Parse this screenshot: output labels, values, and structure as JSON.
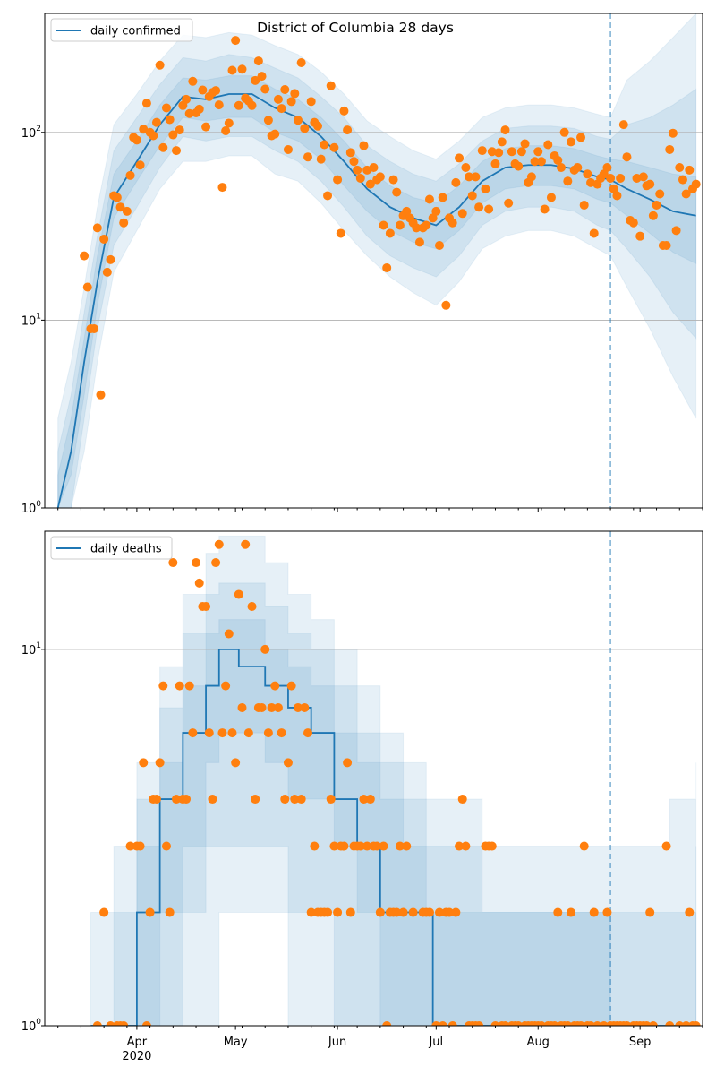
{
  "colors": {
    "model": "#1f77b4",
    "observed": "#ff7f0e",
    "grid": "#b0b0b0",
    "vline": "#1f77b4"
  },
  "chart_data": [
    {
      "type": "line+scatter",
      "title": "District of Columbia 28 days",
      "legend": {
        "label": "daily confirmed",
        "placement": "top-left"
      },
      "y_scale": "log",
      "ylim": [
        1,
        430
      ],
      "xlim": [
        "2020-03-04",
        "2020-09-20"
      ],
      "y_ticks": [
        {
          "base": "10",
          "exp": "0",
          "value": 1
        },
        {
          "base": "10",
          "exp": "1",
          "value": 10
        },
        {
          "base": "10",
          "exp": "2",
          "value": 100
        }
      ],
      "grid": "horizontal at major y ticks",
      "vertical_marker": "2020-08-23",
      "observed": [
        {
          "start_date": "2020-03-16",
          "values": [
            22,
            15,
            9,
            9,
            31,
            4,
            27,
            18,
            21,
            46,
            45,
            40,
            33,
            38,
            59,
            94
          ]
        },
        {
          "start_date": "2020-04-01",
          "values": [
            91,
            67,
            104,
            143,
            100,
            96,
            113,
            228,
            83,
            135,
            117,
            97,
            80,
            103,
            139,
            150,
            126,
            187,
            127,
            133,
            168,
            107,
            155,
            163,
            167,
            140,
            51,
            102,
            112,
            214
          ]
        },
        {
          "start_date": "2020-05-01",
          "values": [
            309,
            139,
            217,
            152,
            147,
            139,
            189,
            240,
            199,
            170,
            116,
            96,
            98,
            150,
            134,
            169,
            81,
            146,
            161,
            116,
            235,
            105,
            74,
            146,
            113,
            108,
            72,
            86,
            46,
            177,
            83
          ]
        },
        {
          "start_date": "2020-06-01",
          "values": [
            56,
            29,
            130,
            103,
            78,
            70,
            63,
            57,
            85,
            63,
            53,
            65,
            56,
            58,
            32,
            19,
            29,
            56,
            48,
            32,
            36,
            38,
            35,
            33,
            31,
            26,
            31,
            32,
            44,
            35
          ]
        },
        {
          "start_date": "2020-07-01",
          "values": [
            38,
            25,
            45,
            12,
            35,
            33,
            54,
            73,
            37,
            65,
            58,
            46,
            58,
            40,
            80,
            50,
            39,
            79,
            68,
            78,
            89,
            103,
            42,
            79,
            68,
            66,
            79,
            87,
            54,
            58,
            70
          ]
        },
        {
          "start_date": "2020-08-01",
          "values": [
            79,
            70,
            39,
            86,
            45,
            75,
            71,
            65,
            100,
            55,
            89,
            63,
            65,
            94,
            41,
            60,
            54,
            29,
            53,
            57,
            60,
            65,
            57,
            50,
            46,
            57,
            110,
            74,
            34,
            33,
            57
          ]
        },
        {
          "start_date": "2020-09-01",
          "values": [
            28,
            58,
            52,
            53,
            36,
            41,
            47,
            25,
            25,
            81,
            99,
            30,
            65,
            56,
            47,
            63,
            50,
            53
          ]
        }
      ],
      "model_columns": [
        "date",
        "outer_lo",
        "mid_lo",
        "inner_lo",
        "median",
        "inner_hi",
        "mid_hi",
        "outer_hi"
      ],
      "model": [
        [
          "2020-03-08",
          0.5,
          0.6,
          0.8,
          1,
          1.5,
          2,
          3
        ],
        [
          "2020-03-12",
          0.8,
          1,
          1.5,
          2,
          3,
          4,
          6
        ],
        [
          "2020-03-16",
          2,
          3,
          4,
          6,
          8,
          11,
          15
        ],
        [
          "2020-03-20",
          6,
          9,
          12,
          16,
          22,
          28,
          40
        ],
        [
          "2020-03-25",
          18,
          25,
          35,
          45,
          60,
          80,
          110
        ],
        [
          "2020-04-01",
          30,
          40,
          55,
          70,
          90,
          120,
          160
        ],
        [
          "2020-04-08",
          50,
          65,
          85,
          110,
          140,
          180,
          240
        ],
        [
          "2020-04-15",
          70,
          95,
          120,
          155,
          195,
          250,
          330
        ],
        [
          "2020-04-22",
          70,
          90,
          115,
          150,
          190,
          240,
          320
        ],
        [
          "2020-04-29",
          75,
          95,
          120,
          160,
          200,
          260,
          340
        ],
        [
          "2020-05-06",
          75,
          95,
          120,
          160,
          200,
          250,
          330
        ],
        [
          "2020-05-13",
          60,
          80,
          100,
          135,
          170,
          220,
          290
        ],
        [
          "2020-05-20",
          55,
          70,
          90,
          120,
          150,
          195,
          260
        ],
        [
          "2020-05-27",
          42,
          55,
          72,
          95,
          120,
          155,
          210
        ],
        [
          "2020-06-03",
          30,
          40,
          52,
          70,
          90,
          120,
          160
        ],
        [
          "2020-06-10",
          22,
          28,
          38,
          50,
          65,
          85,
          115
        ],
        [
          "2020-06-17",
          17,
          22,
          30,
          40,
          52,
          70,
          95
        ],
        [
          "2020-06-24",
          14,
          19,
          26,
          35,
          45,
          60,
          80
        ],
        [
          "2020-07-01",
          12,
          17,
          24,
          32,
          42,
          55,
          72
        ],
        [
          "2020-07-08",
          16,
          22,
          30,
          40,
          52,
          68,
          90
        ],
        [
          "2020-07-15",
          24,
          32,
          42,
          55,
          70,
          90,
          120
        ],
        [
          "2020-07-22",
          28,
          38,
          50,
          65,
          82,
          105,
          135
        ],
        [
          "2020-07-29",
          30,
          40,
          52,
          67,
          85,
          108,
          140
        ],
        [
          "2020-08-05",
          30,
          40,
          52,
          67,
          85,
          108,
          140
        ],
        [
          "2020-08-12",
          28,
          38,
          50,
          64,
          82,
          105,
          135
        ],
        [
          "2020-08-19",
          24,
          32,
          44,
          58,
          75,
          95,
          125
        ],
        [
          "2020-08-23",
          22,
          30,
          42,
          56,
          72,
          92,
          120
        ],
        [
          "2020-08-28",
          15,
          24,
          36,
          50,
          70,
          110,
          190
        ],
        [
          "2020-09-04",
          9,
          17,
          29,
          44,
          65,
          120,
          240
        ],
        [
          "2020-09-11",
          5,
          11,
          23,
          38,
          60,
          140,
          320
        ],
        [
          "2020-09-18",
          3,
          8,
          20,
          36,
          58,
          170,
          430
        ]
      ]
    },
    {
      "type": "line+scatter",
      "legend": {
        "label": "daily deaths",
        "placement": "top-left"
      },
      "y_scale": "log",
      "ylim": [
        1,
        20.6
      ],
      "xlim": [
        "2020-03-04",
        "2020-09-20"
      ],
      "y_ticks": [
        {
          "base": "10",
          "exp": "0",
          "value": 1
        },
        {
          "base": "10",
          "exp": "1",
          "value": 10
        }
      ],
      "grid": "horizontal at major y ticks",
      "vertical_marker": "2020-08-23",
      "x_ticks": [
        {
          "date": "2020-04-01",
          "label": "Apr",
          "sublabel": "2020"
        },
        {
          "date": "2020-05-01",
          "label": "May"
        },
        {
          "date": "2020-06-01",
          "label": "Jun"
        },
        {
          "date": "2020-07-01",
          "label": "Jul"
        },
        {
          "date": "2020-08-01",
          "label": "Aug"
        },
        {
          "date": "2020-09-01",
          "label": "Sep"
        }
      ],
      "observed": [
        {
          "start_date": "2020-03-16",
          "values": [
            0,
            0,
            0,
            0,
            1,
            0,
            2,
            0,
            1,
            0,
            1,
            1,
            1,
            0,
            3,
            0
          ]
        },
        {
          "start_date": "2020-04-01",
          "values": [
            3,
            3,
            5,
            1,
            2,
            4,
            4,
            5,
            8,
            3,
            2,
            17,
            4,
            8,
            4,
            4,
            8,
            6,
            17,
            15,
            13,
            13,
            6,
            4,
            17,
            19,
            6,
            8,
            11,
            6
          ]
        },
        {
          "start_date": "2020-05-01",
          "values": [
            5,
            14,
            7,
            19,
            6,
            13,
            4,
            7,
            7,
            10,
            6,
            7,
            8,
            7,
            6,
            4,
            5,
            8,
            4,
            7,
            4,
            7,
            6,
            2,
            3,
            2,
            2,
            2,
            2,
            4,
            3
          ]
        },
        {
          "start_date": "2020-06-01",
          "values": [
            2,
            3,
            3,
            5,
            2,
            3,
            3,
            3,
            4,
            3,
            4,
            3,
            3,
            2,
            3,
            1,
            2,
            2,
            2,
            3,
            2,
            3,
            0,
            2,
            0,
            0,
            2,
            2,
            2,
            0
          ]
        },
        {
          "start_date": "2020-07-01",
          "values": [
            1,
            2,
            1,
            2,
            2,
            1,
            2,
            3,
            4,
            3,
            1,
            1,
            1,
            1,
            0,
            3,
            3,
            3,
            1,
            0,
            1,
            1,
            0,
            1,
            1,
            1,
            0,
            1,
            1,
            1,
            1
          ]
        },
        {
          "start_date": "2020-08-01",
          "values": [
            1,
            1,
            0,
            1,
            1,
            1,
            2,
            1,
            1,
            1,
            2,
            1,
            1,
            1,
            3,
            1,
            1,
            2,
            1,
            0,
            1,
            2,
            1,
            1,
            1,
            1,
            1,
            1,
            0,
            1,
            1
          ]
        },
        {
          "start_date": "2020-09-01",
          "values": [
            1,
            1,
            1,
            2,
            1,
            0,
            0,
            0,
            3,
            1,
            0,
            0,
            1,
            0,
            1,
            2,
            1,
            1
          ]
        }
      ],
      "model_columns": [
        "date",
        "outer_lo",
        "mid_lo",
        "inner_lo",
        "median",
        "inner_hi",
        "mid_hi",
        "outer_hi"
      ],
      "model": [
        [
          "2020-03-18",
          0,
          0,
          0,
          0,
          1,
          1,
          2
        ],
        [
          "2020-03-25",
          0,
          0,
          0,
          0,
          1,
          2,
          3
        ],
        [
          "2020-04-01",
          0,
          0,
          1,
          2,
          3,
          4,
          5
        ],
        [
          "2020-04-08",
          0,
          1,
          2,
          4,
          5,
          7,
          9
        ],
        [
          "2020-04-15",
          1,
          2,
          3,
          6,
          8,
          11,
          14
        ],
        [
          "2020-04-22",
          1,
          3,
          5,
          8,
          11,
          14,
          18
        ],
        [
          "2020-04-26",
          2,
          3,
          6,
          10,
          12,
          15,
          20
        ],
        [
          "2020-05-02",
          2,
          3,
          6,
          9,
          12,
          15,
          20
        ],
        [
          "2020-05-10",
          2,
          3,
          5,
          8,
          10,
          13,
          17
        ],
        [
          "2020-05-17",
          1,
          2,
          4,
          7,
          9,
          11,
          14
        ],
        [
          "2020-05-24",
          1,
          2,
          4,
          6,
          8,
          10,
          12
        ],
        [
          "2020-05-31",
          0,
          1,
          3,
          4,
          6,
          8,
          10
        ],
        [
          "2020-06-07",
          0,
          1,
          2,
          3,
          5,
          6,
          8
        ],
        [
          "2020-06-14",
          0,
          1,
          1,
          2,
          4,
          5,
          6
        ],
        [
          "2020-06-21",
          0,
          0,
          1,
          2,
          3,
          4,
          5
        ],
        [
          "2020-06-28",
          0,
          0,
          1,
          2,
          2,
          3,
          4
        ],
        [
          "2020-06-30",
          0,
          0,
          0,
          0,
          2,
          3,
          4
        ],
        [
          "2020-07-15",
          0,
          0,
          0,
          0,
          2,
          2,
          3
        ],
        [
          "2020-08-23",
          0,
          0,
          0,
          0,
          1,
          2,
          3
        ],
        [
          "2020-09-10",
          0,
          0,
          0,
          0,
          1,
          2,
          4
        ],
        [
          "2020-09-18",
          0,
          0,
          0,
          0,
          2,
          3,
          5
        ]
      ]
    }
  ]
}
